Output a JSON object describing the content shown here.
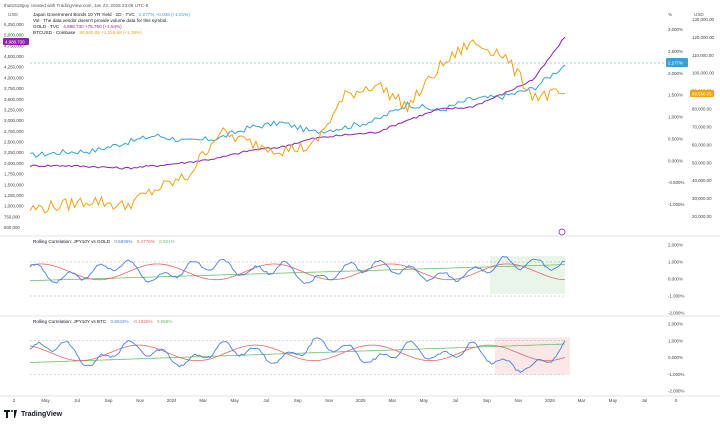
{
  "header": {
    "created_by": "that1618guy created with TradingView.com, Jan 23, 2026 23:08 UTC-8"
  },
  "legend": {
    "line1_name": "Japan Government Bonds 10 YR Yield · 1D · TVC",
    "line1_value": "2.277%  +0.036 (+1.61%)",
    "line2": "Vol · The data vendor doesn't provide volume data for this symbol.",
    "line3_name": "GOLD · TVC",
    "line3_value": "4,988.730  +75.760 (+1.54%)",
    "line4_name": "BTCUSD · Coinbase",
    "line4_value": "89,560.05  +1,228.88 (+1.39%)"
  },
  "left_axis": {
    "unit": "USD",
    "ticks": [
      "5,250,000",
      "5,000,000",
      "4,750,000",
      "4,500,000",
      "4,250,000",
      "4,000,000",
      "3,750,000",
      "3,500,000",
      "3,250,000",
      "3,000,000",
      "2,750,000",
      "2,500,000",
      "2,250,000",
      "2,000,000",
      "1,750,000",
      "1,500,000",
      "1,250,000",
      "1,000,000",
      "750,000",
      "500,000"
    ],
    "badge": "4,988.730"
  },
  "right_axis": {
    "unit_pct": "%",
    "unit_usd": "USD",
    "pct_ticks": [
      "3.000%",
      "2.500%",
      "2.000%",
      "1.500%",
      "1.000%",
      "0.500%",
      "0.000%",
      "-0.500%",
      "-1.000%"
    ],
    "usd_ticks": [
      "130,000.00",
      "120,000.00",
      "110,000.00",
      "100,000.00",
      "90,000.00",
      "80,000.00",
      "70,000.00",
      "60,000.00",
      "50,000.00",
      "40,000.00",
      "30,000.00",
      "20,000.00"
    ],
    "jgb_badge": "2.277%",
    "btc_badge": "89,560.05"
  },
  "panel1": {
    "title": "Rolling Correlation: JPY10Y vs GOLD",
    "v1": "0.5935%",
    "v2": "0.4776%",
    "v3": "0.921%",
    "ticks": [
      "2.000%",
      "1.000%",
      "0.000%",
      "-1.000%",
      "-2.000%"
    ]
  },
  "panel2": {
    "title": "Rolling Correlation: JPY10Y vs BTC",
    "v1": "0.6042%",
    "v2": "-0.1926%",
    "v3": "0.558%",
    "ticks": [
      "2.000%",
      "1.000%",
      "0.000%",
      "-1.000%",
      "-2.000%"
    ]
  },
  "time_axis": {
    "labels": [
      "2",
      "May",
      "Jul",
      "Sep",
      "Nov",
      "2024",
      "Mar",
      "May",
      "Jul",
      "Sep",
      "Nov",
      "2025",
      "Mar",
      "May",
      "Jul",
      "Sep",
      "Nov",
      "2026",
      "Mar",
      "May",
      "Jul",
      "S"
    ]
  },
  "brand": {
    "name": "TradingView"
  },
  "colors": {
    "jgb": "#3aa0d8",
    "gold": "#f0a21b",
    "btc": "#8e24aa",
    "purple_dark": "#6a1b9a",
    "corr_blue": "#4a7fe0",
    "corr_red": "#e06666",
    "corr_green": "#6abf6a"
  },
  "chart_data": [
    {
      "type": "line",
      "title": "Japan Government Bonds 10 YR Yield · 1D · TVC",
      "x": [
        "2023-03",
        "2023-05",
        "2023-07",
        "2023-09",
        "2023-11",
        "2024-01",
        "2024-03",
        "2024-05",
        "2024-07",
        "2024-09",
        "2024-11",
        "2025-01",
        "2025-03",
        "2025-05",
        "2025-07",
        "2025-09",
        "2025-11",
        "2026-01"
      ],
      "series": [
        {
          "name": "Japan Government Bonds 10 YR Yield · 1D · TVC",
          "unit": "%",
          "values": [
            0.35,
            0.42,
            0.45,
            0.62,
            0.78,
            0.65,
            0.72,
            0.95,
            1.05,
            0.85,
            0.95,
            1.1,
            1.45,
            1.3,
            1.55,
            1.6,
            1.78,
            2.277
          ]
        },
        {
          "name": "GOLD · TVC",
          "unit": "USD",
          "values": [
            1980,
            1985,
            1960,
            1920,
            1980,
            2060,
            2160,
            2340,
            2420,
            2620,
            2700,
            2760,
            3050,
            3300,
            3350,
            3650,
            4000,
            4988.73
          ]
        },
        {
          "name": "BTCUSD · Coinbase",
          "unit": "USD",
          "values": [
            25000,
            27000,
            30000,
            26500,
            36000,
            43000,
            68000,
            62000,
            58000,
            60000,
            88000,
            95000,
            82000,
            104000,
            118000,
            112000,
            88000,
            89560.05
          ]
        }
      ]
    },
    {
      "type": "line",
      "title": "Rolling Correlation: JPY10Y vs GOLD",
      "ylim": [
        -2,
        2
      ],
      "series": [
        {
          "name": "JPY10Y vs GOLD",
          "values": [
            0.5,
            -0.3,
            0.2,
            0.8,
            -0.4,
            0.5,
            0.7,
            0.1,
            0.6,
            -0.5,
            0.4,
            0.6,
            0.3,
            -0.2,
            0.1,
            0.8,
            0.7,
            0.59
          ]
        }
      ]
    },
    {
      "type": "line",
      "title": "Rolling Correlation: JPY10Y vs BTC",
      "ylim": [
        -2,
        2
      ],
      "series": [
        {
          "name": "JPY10Y vs BTC",
          "values": [
            0.4,
            0.8,
            -0.6,
            0.7,
            0.2,
            -0.5,
            0.6,
            0.3,
            -0.3,
            0.8,
            0.5,
            -0.4,
            0.7,
            -0.2,
            0.6,
            -0.5,
            -0.8,
            0.6
          ]
        }
      ]
    }
  ]
}
